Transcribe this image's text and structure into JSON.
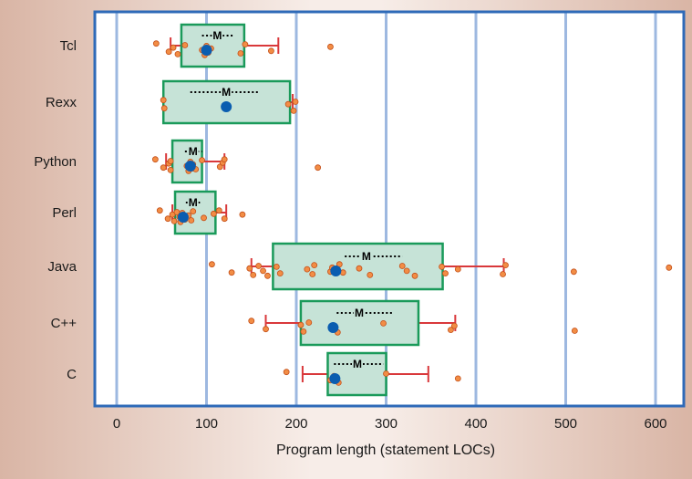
{
  "chart_data": {
    "type": "box",
    "xlabel": "Program length (statement LOCs)",
    "xlim": [
      -25,
      635
    ],
    "xticks": [
      0,
      100,
      200,
      300,
      400,
      500,
      600
    ],
    "grid": "vertical",
    "median_marker": "M",
    "colors": {
      "box_fill": "#c6e3d7",
      "box_stroke": "#1a9a5a",
      "whisker": "#d9383b",
      "point": "#f28d45",
      "point_stroke": "#c4501a",
      "mean": "#0a5db0",
      "frame": "#2e6ab8",
      "grid": "#9db8e0"
    },
    "categories": [
      {
        "name": "Tcl",
        "q1": 72,
        "q3": 142,
        "whisker_low": 60,
        "whisker_high": 180,
        "mean": 100,
        "median": 112,
        "m_span": [
          95,
          130
        ],
        "points": [
          44,
          58,
          63,
          68,
          76,
          95,
          98,
          100,
          102,
          105,
          138,
          143,
          172,
          238
        ]
      },
      {
        "name": "Rexx",
        "q1": 52,
        "q3": 193,
        "whisker_low": 52,
        "whisker_high": 196,
        "mean": 122,
        "median": 122,
        "m_span": [
          82,
          158
        ],
        "points": [
          52,
          53,
          191,
          197,
          199
        ]
      },
      {
        "name": "Python",
        "q1": 62,
        "q3": 95,
        "whisker_low": 55,
        "whisker_high": 120,
        "mean": 82,
        "median": 85,
        "m_span": [
          76,
          95
        ],
        "points": [
          43,
          52,
          58,
          60,
          60,
          78,
          80,
          82,
          84,
          85,
          88,
          95,
          115,
          118,
          120,
          224
        ]
      },
      {
        "name": "Perl",
        "q1": 65,
        "q3": 110,
        "whisker_low": 62,
        "whisker_high": 122,
        "mean": 74,
        "median": 85,
        "m_span": [
          77,
          94
        ],
        "points": [
          48,
          57,
          62,
          64,
          67,
          70,
          71,
          73,
          76,
          80,
          83,
          85,
          97,
          108,
          114,
          120,
          140
        ]
      },
      {
        "name": "Java",
        "q1": 174,
        "q3": 363,
        "whisker_low": 150,
        "whisker_high": 431,
        "mean": 244,
        "median": 278,
        "m_span": [
          254,
          318
        ],
        "points": [
          106,
          128,
          148,
          152,
          158,
          163,
          168,
          178,
          182,
          212,
          218,
          220,
          238,
          240,
          248,
          252,
          270,
          282,
          318,
          323,
          332,
          362,
          366,
          380,
          430,
          433,
          509,
          615
        ]
      },
      {
        "name": "C++",
        "q1": 205,
        "q3": 336,
        "whisker_low": 166,
        "whisker_high": 377,
        "mean": 241,
        "median": 270,
        "m_span": [
          245,
          307
        ],
        "points": [
          150,
          166,
          205,
          208,
          214,
          243,
          246,
          297,
          372,
          376,
          510
        ]
      },
      {
        "name": "C",
        "q1": 235,
        "q3": 300,
        "whisker_low": 207,
        "whisker_high": 347,
        "mean": 243,
        "median": 268,
        "m_span": [
          242,
          297
        ],
        "points": [
          189,
          238,
          242,
          247,
          300,
          380
        ]
      }
    ]
  }
}
